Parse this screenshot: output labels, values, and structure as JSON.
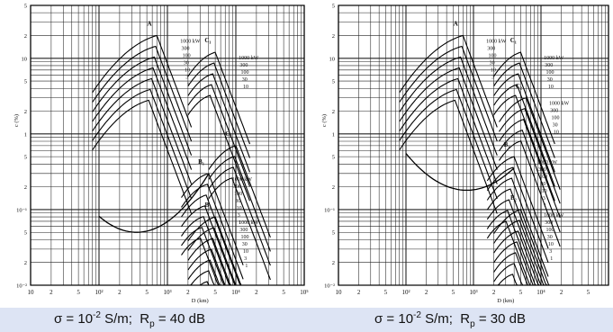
{
  "chart_data": [
    {
      "type": "line",
      "caption": {
        "sigma": "σ = 10",
        "sigma_exp": "-2",
        "sigma_unit": " S/m;  ",
        "rp_sym": "R",
        "rp_sub": "p",
        "rp_rest": " = 40 dB"
      },
      "xlabel": "D (km)",
      "ylabel": "c (%)",
      "x_scale": "log",
      "y_scale": "log",
      "xlim": [
        10,
        100000
      ],
      "ylim": [
        0.01,
        50
      ],
      "x_tick_labels": [
        "10",
        "2",
        "5",
        "10²",
        "2",
        "5",
        "10³",
        "2",
        "5",
        "10⁴",
        "2",
        "5",
        "10⁵"
      ],
      "y_tick_labels": [
        "5",
        "2",
        "10",
        "5",
        "2",
        "1",
        "5",
        "2",
        "10⁻¹",
        "5",
        "2",
        "10⁻²"
      ],
      "grid": true,
      "groups": [
        {
          "name": "A",
          "power_labels": [
            "1000 kW",
            "300",
            "100",
            "30",
            "10",
            "3",
            "1"
          ],
          "peak": [
            700,
            20
          ]
        },
        {
          "name": "C₁",
          "power_labels": [
            "1000 kW",
            "300",
            "100",
            "30",
            "10"
          ],
          "peak": [
            5000,
            12
          ]
        },
        {
          "name": "C₂",
          "power_labels": [],
          "peak": [
            10000,
            0.7
          ]
        },
        {
          "name": "B₁",
          "power_labels": [
            "1000 kW",
            "300",
            "100",
            "30",
            "10",
            "3",
            "1"
          ],
          "peak": [
            4000,
            0.3
          ]
        },
        {
          "name": "B₂",
          "power_labels": [
            "1000 kW",
            "300",
            "100",
            "30",
            "10",
            "3",
            "1"
          ],
          "peak": [
            5000,
            0.08
          ]
        }
      ]
    },
    {
      "type": "line",
      "caption": {
        "sigma": "σ = 10",
        "sigma_exp": "-2",
        "sigma_unit": " S/m;  ",
        "rp_sym": "R",
        "rp_sub": "p",
        "rp_rest": " = 30 dB"
      },
      "xlabel": "D (km)",
      "ylabel": "c (%)",
      "x_scale": "log",
      "y_scale": "log",
      "xlim": [
        10,
        100000
      ],
      "ylim": [
        0.01,
        50
      ],
      "x_tick_labels": [
        "10",
        "2",
        "5",
        "10²",
        "2",
        "5",
        "10³",
        "2",
        "5",
        "10⁴",
        "2",
        "5"
      ],
      "y_tick_labels": [
        "5",
        "2",
        "10",
        "5",
        "2",
        "1",
        "5",
        "2",
        "10⁻¹",
        "5",
        "2",
        "10⁻²"
      ],
      "grid": true,
      "groups": [
        {
          "name": "A",
          "power_labels": [
            "1000 kW",
            "300",
            "100",
            "30",
            "10",
            "3",
            "1"
          ],
          "peak": [
            700,
            20
          ]
        },
        {
          "name": "C₁",
          "power_labels": [
            "1000 kW",
            "300",
            "100",
            "30",
            "10"
          ],
          "peak": [
            5000,
            12
          ]
        },
        {
          "name": "C₂",
          "power_labels": [
            "1000 kW",
            "300",
            "100",
            "30",
            "10"
          ],
          "peak": [
            6000,
            3
          ]
        },
        {
          "name": "B₁",
          "power_labels": [
            "1000 kW",
            "300",
            "100",
            "30",
            "10",
            "3",
            "1"
          ],
          "peak": [
            4000,
            0.5
          ]
        },
        {
          "name": "B₂",
          "power_labels": [
            "1000 kW",
            "300",
            "100",
            "30",
            "10",
            "3",
            "1"
          ],
          "peak": [
            5000,
            0.1
          ]
        }
      ]
    }
  ]
}
